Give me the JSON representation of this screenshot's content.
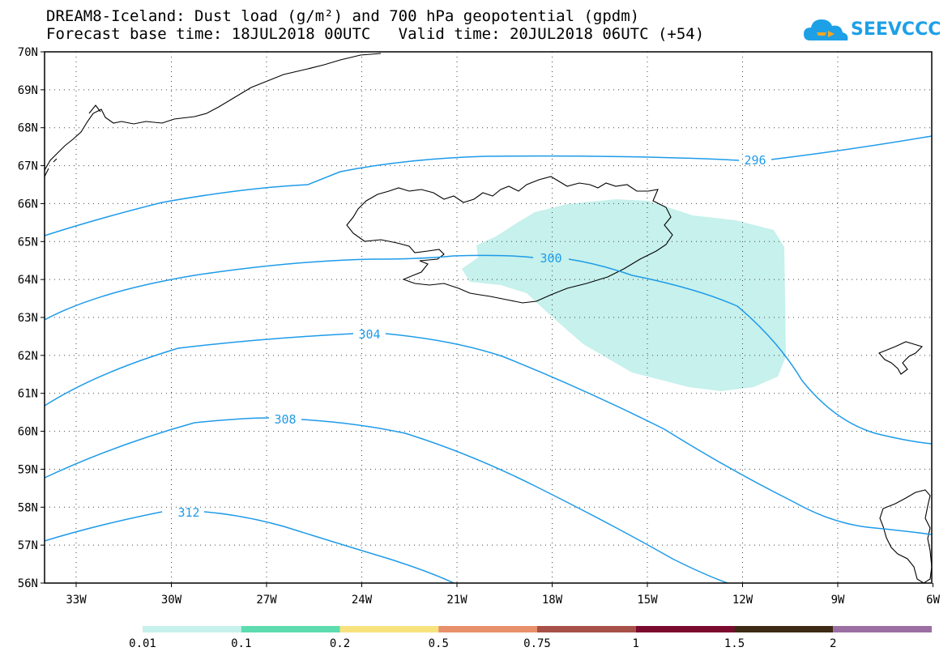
{
  "title_line1": "DREAM8-Iceland: Dust load (g/m²) and 700 hPa geopotential (gpdm)",
  "title_line2": "Forecast base time: 18JUL2018 00UTC   Valid time: 20JUL2018 06UTC (+54)",
  "logo": {
    "text": "SEEVCCC",
    "icon": "cloud-icon",
    "color": "#1ea0e6"
  },
  "map": {
    "lat_labels": [
      "70N",
      "69N",
      "68N",
      "67N",
      "66N",
      "65N",
      "64N",
      "63N",
      "62N",
      "61N",
      "60N",
      "59N",
      "58N",
      "57N",
      "56N"
    ],
    "lon_labels": [
      "33W",
      "30W",
      "27W",
      "24W",
      "21W",
      "18W",
      "15W",
      "12W",
      "9W",
      "6W"
    ],
    "contour_color": "#1e9be9",
    "coast_color": "#000000",
    "contours": [
      {
        "label": "296"
      },
      {
        "label": "300"
      },
      {
        "label": "304"
      },
      {
        "label": "308"
      },
      {
        "label": "312"
      }
    ],
    "dust_fill_color": "#c6f1ec"
  },
  "colorbar": {
    "labels": [
      "0.01",
      "0.1",
      "0.2",
      "0.5",
      "0.75",
      "1",
      "1.5",
      "2"
    ],
    "colors": [
      "#c6f1ec",
      "#5ddcb0",
      "#f7e27d",
      "#e8906a",
      "#a65048",
      "#7a0b2e",
      "#3e2a14",
      "#9b6fa3"
    ]
  }
}
